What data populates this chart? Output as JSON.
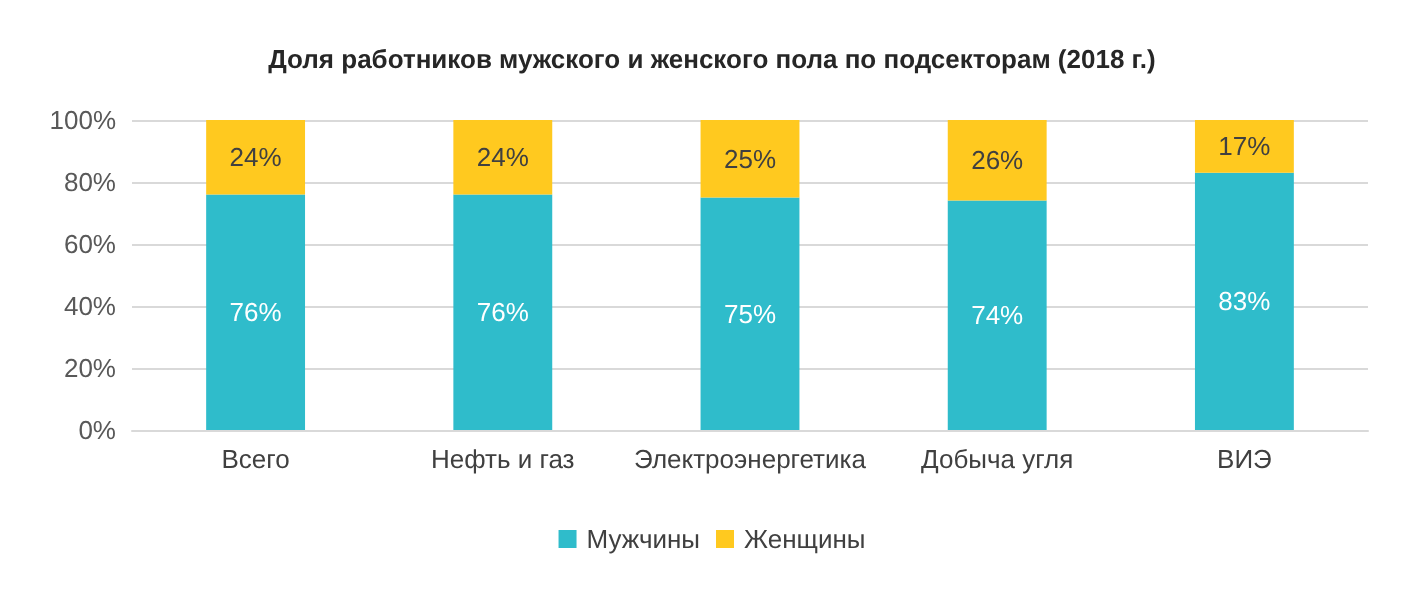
{
  "chart_data": {
    "type": "bar",
    "title": "Доля работников мужского и женского пола по подсекторам (2018 г.)",
    "categories": [
      "Всего",
      "Нефть и газ",
      "Электроэнергетика",
      "Добыча угля",
      "ВИЭ"
    ],
    "series": [
      {
        "name": "Мужчины",
        "color": "#2fbccb",
        "values": [
          76,
          76,
          75,
          74,
          83
        ],
        "value_labels": [
          "76%",
          "76%",
          "75%",
          "74%",
          "83%"
        ]
      },
      {
        "name": "Женщины",
        "color": "#ffc91f",
        "values": [
          24,
          24,
          25,
          26,
          17
        ],
        "value_labels": [
          "24%",
          "24%",
          "25%",
          "26%",
          "17%"
        ]
      }
    ],
    "stacked": true,
    "ylim": [
      0,
      100
    ],
    "yticks": [
      {
        "value": 0,
        "label": "0%"
      },
      {
        "value": 20,
        "label": "20%"
      },
      {
        "value": 40,
        "label": "40%"
      },
      {
        "value": 60,
        "label": "60%"
      },
      {
        "value": 80,
        "label": "80%"
      },
      {
        "value": 100,
        "label": "100%"
      }
    ],
    "grid": "y",
    "legend": "bottom"
  }
}
